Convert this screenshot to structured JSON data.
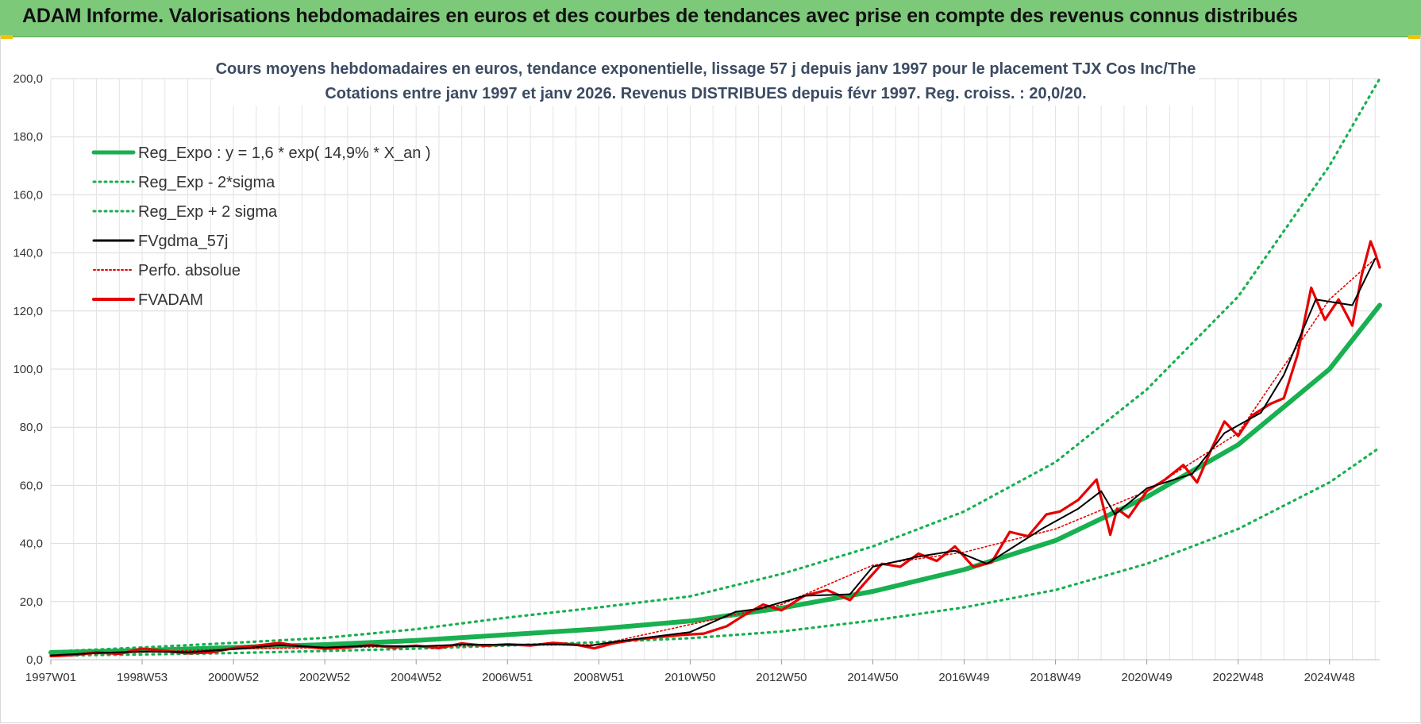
{
  "header": {
    "banner": "ADAM Informe. Valorisations hebdomadaires en euros et des courbes de tendances avec prise en compte des revenus connus distribués"
  },
  "colors": {
    "banner_bg": "#7dc97a",
    "reg_expo": "#18b050",
    "fvgdma": "#000000",
    "fvadam": "#e60000",
    "perfo": "#e60000",
    "accent_corner": "#f2c200"
  },
  "chart_data": {
    "type": "line",
    "title_line1": "Cours moyens hebdomadaires en euros, tendance exponentielle, lissage 57 j depuis janv 1997 pour le placement TJX Cos Inc/The",
    "title_line2": "Cotations entre janv 1997 et janv 2026. Revenus DISTRIBUES depuis févr 1997. Reg. croiss. : 20,0/20.",
    "ylim": [
      0,
      200
    ],
    "xlim": [
      1997.0,
      2026.1
    ],
    "grid": true,
    "legend_position": "top-left",
    "y_ticks": [
      "0,0",
      "20,0",
      "40,0",
      "60,0",
      "80,0",
      "100,0",
      "120,0",
      "140,0",
      "160,0",
      "180,0",
      "200,0"
    ],
    "x_ticks": [
      {
        "label": "1997W01",
        "x": 1997.0
      },
      {
        "label": "1998W53",
        "x": 1999.0
      },
      {
        "label": "2000W52",
        "x": 2001.0
      },
      {
        "label": "2002W52",
        "x": 2003.0
      },
      {
        "label": "2004W52",
        "x": 2005.0
      },
      {
        "label": "2006W51",
        "x": 2007.0
      },
      {
        "label": "2008W51",
        "x": 2009.0
      },
      {
        "label": "2010W50",
        "x": 2011.0
      },
      {
        "label": "2012W50",
        "x": 2013.0
      },
      {
        "label": "2014W50",
        "x": 2015.0
      },
      {
        "label": "2016W49",
        "x": 2017.0
      },
      {
        "label": "2018W49",
        "x": 2019.0
      },
      {
        "label": "2020W49",
        "x": 2021.0
      },
      {
        "label": "2022W48",
        "x": 2023.0
      },
      {
        "label": "2024W48",
        "x": 2025.0
      }
    ],
    "series": [
      {
        "name": "Reg_Expo : y = 1,6 * exp( 14,9% *  X_an )",
        "style": "thick-solid",
        "x": [
          1997,
          1999,
          2001,
          2003,
          2005,
          2007,
          2009,
          2011,
          2013,
          2015,
          2017,
          2019,
          2021,
          2023,
          2025,
          2026.1
        ],
        "values": [
          2.5,
          3.2,
          4.2,
          5.2,
          6.6,
          8.6,
          10.6,
          13.3,
          17.8,
          23.5,
          31.0,
          41.0,
          56.0,
          74.0,
          100.0,
          122.0
        ]
      },
      {
        "name": "Reg_Exp - 2*sigma",
        "style": "dotted",
        "x": [
          1997,
          1999,
          2001,
          2003,
          2005,
          2007,
          2009,
          2011,
          2013,
          2015,
          2017,
          2019,
          2021,
          2023,
          2025,
          2026.1
        ],
        "values": [
          1.4,
          1.8,
          2.3,
          3.0,
          3.8,
          4.9,
          6.0,
          7.4,
          9.7,
          13.5,
          18.0,
          24.0,
          33.0,
          45.0,
          61.0,
          73.0
        ]
      },
      {
        "name": "Reg_Exp + 2 sigma",
        "style": "dotted",
        "x": [
          1997,
          1999,
          2001,
          2003,
          2005,
          2007,
          2009,
          2011,
          2013,
          2015,
          2017,
          2019,
          2021,
          2023,
          2025,
          2026.1
        ],
        "values": [
          2.8,
          4.2,
          5.8,
          7.5,
          10.5,
          14.5,
          18.0,
          21.8,
          29.5,
          39.0,
          51.0,
          68.0,
          93.0,
          125.0,
          170.0,
          200.0
        ]
      },
      {
        "name": "FVgdma_57j",
        "style": "thin-solid",
        "x": [
          1997,
          1998,
          1999,
          2000,
          2001,
          2002,
          2003,
          2004,
          2005,
          2006,
          2007,
          2008,
          2008.8,
          2009.5,
          2010,
          2011,
          2012,
          2012.5,
          2013.5,
          2014.5,
          2015,
          2016,
          2016.8,
          2017.5,
          2018,
          2018.7,
          2019.5,
          2020,
          2020.3,
          2021,
          2022,
          2022.7,
          2023.5,
          2024,
          2024.7,
          2025.5,
          2026
        ],
        "values": [
          1.5,
          2.3,
          2.8,
          2.6,
          3.6,
          5.0,
          4.2,
          4.8,
          4.6,
          5.2,
          5.2,
          5.3,
          4.8,
          6.5,
          7.5,
          9.5,
          16.5,
          17.5,
          22.0,
          22.5,
          32.0,
          35.5,
          37.5,
          33.0,
          38.0,
          45.0,
          52.0,
          58.0,
          50.0,
          59.0,
          64.0,
          78.0,
          85.0,
          98.0,
          124.0,
          122.0,
          138.0
        ]
      },
      {
        "name": "Perfo. absolue",
        "style": "dotted",
        "x": [
          1997,
          2001,
          2005,
          2009,
          2013,
          2015,
          2017,
          2019,
          2021,
          2023,
          2025,
          2026
        ],
        "values": [
          1.5,
          3.7,
          4.6,
          5.2,
          19.0,
          32.5,
          37.0,
          45.0,
          58.0,
          78.0,
          124.0,
          138.0
        ]
      },
      {
        "name": "FVADAM",
        "style": "thick-solid",
        "x": [
          1997,
          1997.5,
          1998,
          1998.5,
          1999,
          1999.5,
          2000,
          2000.5,
          2001,
          2001.5,
          2002,
          2002.5,
          2003,
          2003.5,
          2004,
          2004.5,
          2005,
          2005.5,
          2006,
          2006.5,
          2007,
          2007.5,
          2008,
          2008.5,
          2008.9,
          2009.3,
          2009.8,
          2010.3,
          2010.8,
          2011.3,
          2011.8,
          2012.2,
          2012.6,
          2013.0,
          2013.5,
          2014.0,
          2014.5,
          2014.8,
          2015.2,
          2015.6,
          2016.0,
          2016.4,
          2016.8,
          2017.2,
          2017.6,
          2018.0,
          2018.4,
          2018.8,
          2019.1,
          2019.5,
          2019.9,
          2020.2,
          2020.35,
          2020.6,
          2021.0,
          2021.4,
          2021.8,
          2022.1,
          2022.4,
          2022.7,
          2023.0,
          2023.3,
          2023.7,
          2024.0,
          2024.3,
          2024.6,
          2024.9,
          2025.2,
          2025.5,
          2025.7,
          2025.9,
          2026.0,
          2026.1
        ],
        "values": [
          1.2,
          1.6,
          2.5,
          2.0,
          3.8,
          3.0,
          2.2,
          2.5,
          4.0,
          4.8,
          5.8,
          4.6,
          3.8,
          4.2,
          5.0,
          4.2,
          4.8,
          4.0,
          5.6,
          4.8,
          5.3,
          4.9,
          5.8,
          5.2,
          3.9,
          5.6,
          6.9,
          7.8,
          8.5,
          9.0,
          11.5,
          15.5,
          19.0,
          17.0,
          22.0,
          24.0,
          20.5,
          26.0,
          33.0,
          32.0,
          36.5,
          34.0,
          39.0,
          32.0,
          33.5,
          44.0,
          42.5,
          50.0,
          51.0,
          55.0,
          62.0,
          43.0,
          52.0,
          49.0,
          58.0,
          62.0,
          67.0,
          61.0,
          72.0,
          82.0,
          77.0,
          84.0,
          88.0,
          90.0,
          105.0,
          128.0,
          117.0,
          124.0,
          115.0,
          132.0,
          144.0,
          140.0,
          135.0
        ]
      }
    ]
  }
}
